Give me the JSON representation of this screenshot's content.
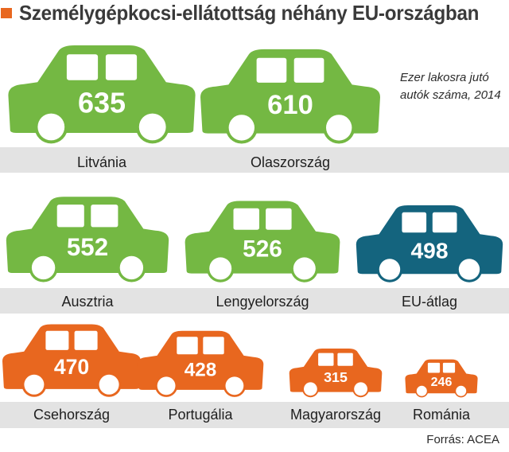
{
  "title": "Személygépkocsi-ellátottság néhány EU-országban",
  "note": "Ezer lakosra jutó autók száma, 2014",
  "source": "Forrás: ACEA",
  "colors": {
    "accent": "#e8671f",
    "green": "#74b843",
    "orange": "#e8671f",
    "blue": "#14647e",
    "band": "#e3e3e3"
  },
  "chart_data": {
    "type": "bar",
    "categories": [
      "Litvánia",
      "Olaszország",
      "Ausztria",
      "Lengyelország",
      "EU-átlag",
      "Csehország",
      "Portugália",
      "Magyarország",
      "Románia"
    ],
    "values": [
      635,
      610,
      552,
      526,
      498,
      470,
      428,
      315,
      246
    ],
    "groups": [
      "green",
      "green",
      "green",
      "green",
      "blue",
      "orange",
      "orange",
      "orange",
      "orange"
    ]
  }
}
